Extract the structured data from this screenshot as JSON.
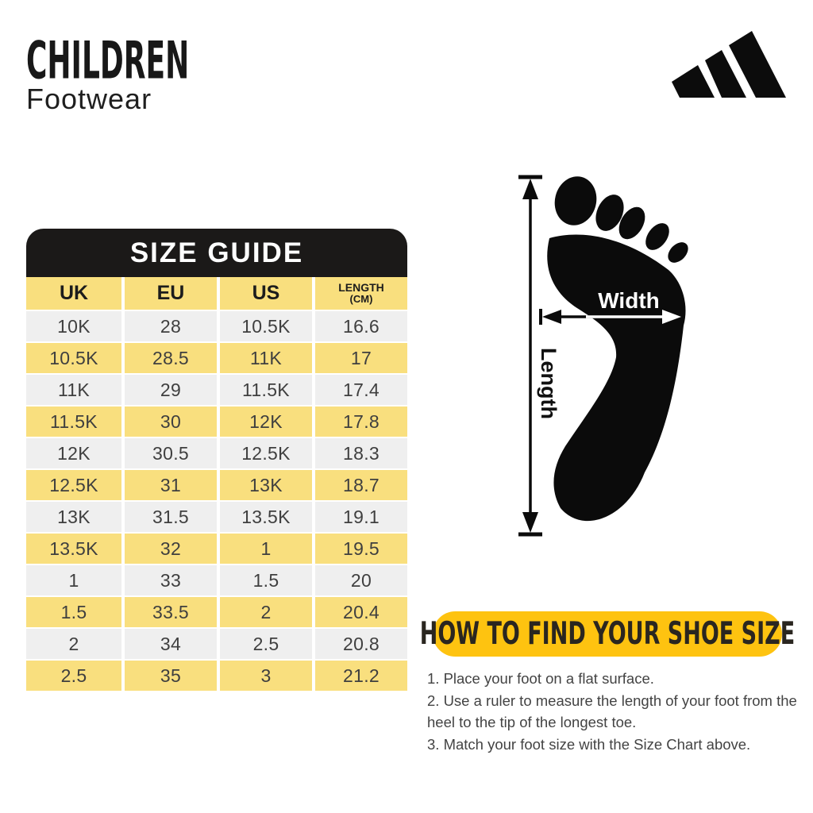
{
  "header": {
    "title": "CHILDREN",
    "subtitle": "Footwear",
    "brand": "adidas-logo"
  },
  "size_guide": {
    "title": "SIZE GUIDE",
    "columns": [
      {
        "label": "UK"
      },
      {
        "label": "EU"
      },
      {
        "label": "US"
      },
      {
        "label": "LENGTH",
        "sub": "(CM)"
      }
    ],
    "rows": [
      [
        "10K",
        "28",
        "10.5K",
        "16.6"
      ],
      [
        "10.5K",
        "28.5",
        "11K",
        "17"
      ],
      [
        "11K",
        "29",
        "11.5K",
        "17.4"
      ],
      [
        "11.5K",
        "30",
        "12K",
        "17.8"
      ],
      [
        "12K",
        "30.5",
        "12.5K",
        "18.3"
      ],
      [
        "12.5K",
        "31",
        "13K",
        "18.7"
      ],
      [
        "13K",
        "31.5",
        "13.5K",
        "19.1"
      ],
      [
        "13.5K",
        "32",
        "1",
        "19.5"
      ],
      [
        "1",
        "33",
        "1.5",
        "20"
      ],
      [
        "1.5",
        "33.5",
        "2",
        "20.4"
      ],
      [
        "2",
        "34",
        "2.5",
        "20.8"
      ],
      [
        "2.5",
        "35",
        "3",
        "21.2"
      ]
    ]
  },
  "diagram": {
    "width_label": "Width",
    "length_label": "Length"
  },
  "how_to": {
    "title": "HOW TO FIND YOUR SHOE SIZE",
    "steps": [
      "1. Place your foot on a flat surface.",
      "2. Use a ruler to measure the length of your foot from the heel to the tip of the longest toe.",
      "3. Match your foot size with the Size Chart above."
    ]
  },
  "colors": {
    "table_yellow": "#F9DF7E",
    "table_gray": "#EFEFEF",
    "banner_yellow": "#FEC310",
    "ink_black": "#1b1918",
    "text_gray": "#3f3f3f"
  }
}
